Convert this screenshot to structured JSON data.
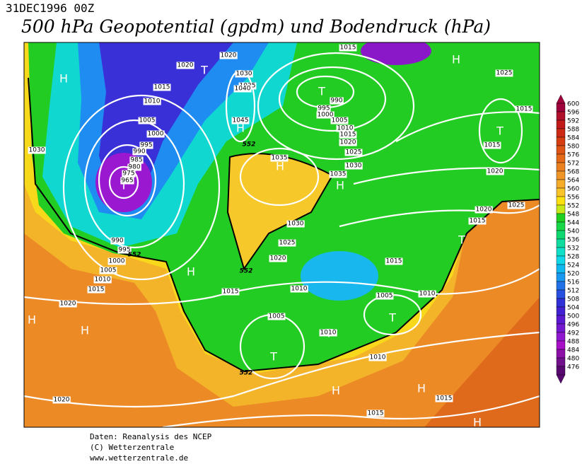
{
  "header": {
    "date": "31DEC1996 00Z",
    "title": "500 hPa Geopotential (gpdm) und Bodendruck (hPa)"
  },
  "footer": [
    "Daten: Reanalysis des NCEP",
    "(C) Wetterzentrale",
    "www.wetterzentrale.de"
  ],
  "colorbar": [
    {
      "value": 600,
      "color": "#a0003c"
    },
    {
      "value": 596,
      "color": "#b0102c"
    },
    {
      "value": 592,
      "color": "#c01a1a"
    },
    {
      "value": 588,
      "color": "#cc2a14"
    },
    {
      "value": 584,
      "color": "#d63e12"
    },
    {
      "value": 580,
      "color": "#de5414"
    },
    {
      "value": 576,
      "color": "#e46a18"
    },
    {
      "value": 572,
      "color": "#ea8020"
    },
    {
      "value": 568,
      "color": "#f09628"
    },
    {
      "value": 564,
      "color": "#f4ac2a"
    },
    {
      "value": 560,
      "color": "#f8c428"
    },
    {
      "value": 556,
      "color": "#fce010"
    },
    {
      "value": 552,
      "color": "#c8e81a"
    },
    {
      "value": 548,
      "color": "#20d020"
    },
    {
      "value": 544,
      "color": "#18d848"
    },
    {
      "value": 540,
      "color": "#10d870"
    },
    {
      "value": 536,
      "color": "#10dca0"
    },
    {
      "value": 532,
      "color": "#10e0c8"
    },
    {
      "value": 528,
      "color": "#10d8e8"
    },
    {
      "value": 524,
      "color": "#10b8f0"
    },
    {
      "value": 520,
      "color": "#1898f0"
    },
    {
      "value": 516,
      "color": "#2070e8"
    },
    {
      "value": 512,
      "color": "#2850e0"
    },
    {
      "value": 508,
      "color": "#3030d8"
    },
    {
      "value": 504,
      "color": "#4020d0"
    },
    {
      "value": 500,
      "color": "#5a18d0"
    },
    {
      "value": 496,
      "color": "#7418d0"
    },
    {
      "value": 492,
      "color": "#9018d0"
    },
    {
      "value": 488,
      "color": "#a810c8"
    },
    {
      "value": 484,
      "color": "#8c10a8"
    },
    {
      "value": 480,
      "color": "#70108a"
    },
    {
      "value": 476,
      "color": "#580870"
    }
  ],
  "map": {
    "pressure_centers": [
      "H",
      "T",
      "H",
      "T",
      "H",
      "T",
      "H",
      "H",
      "T",
      "H",
      "T",
      "H",
      "H",
      "T",
      "T",
      "T",
      "H",
      "H",
      "H"
    ],
    "isobar_labels": [
      "1015",
      "1020",
      "1020",
      "1030",
      "1025",
      "1040",
      "1015",
      "1010",
      "1005",
      "1000",
      "995",
      "990",
      "985",
      "980",
      "975",
      "965",
      "1030",
      "1045",
      "990",
      "995",
      "1000",
      "1005",
      "1010",
      "1015",
      "1020",
      "1025",
      "1030",
      "1035",
      "1035",
      "1030",
      "1025",
      "1020",
      "1015",
      "1010",
      "1005",
      "1010",
      "1015",
      "1005",
      "1010",
      "1010",
      "1020",
      "1015",
      "1015",
      "1020",
      "1015",
      "1010",
      "1005",
      "1000",
      "995",
      "990",
      "1025",
      "1015",
      "1015",
      "1020",
      "1020",
      "1025",
      "1015"
    ],
    "contour_labels": [
      "552",
      "552",
      "552",
      "552"
    ]
  }
}
